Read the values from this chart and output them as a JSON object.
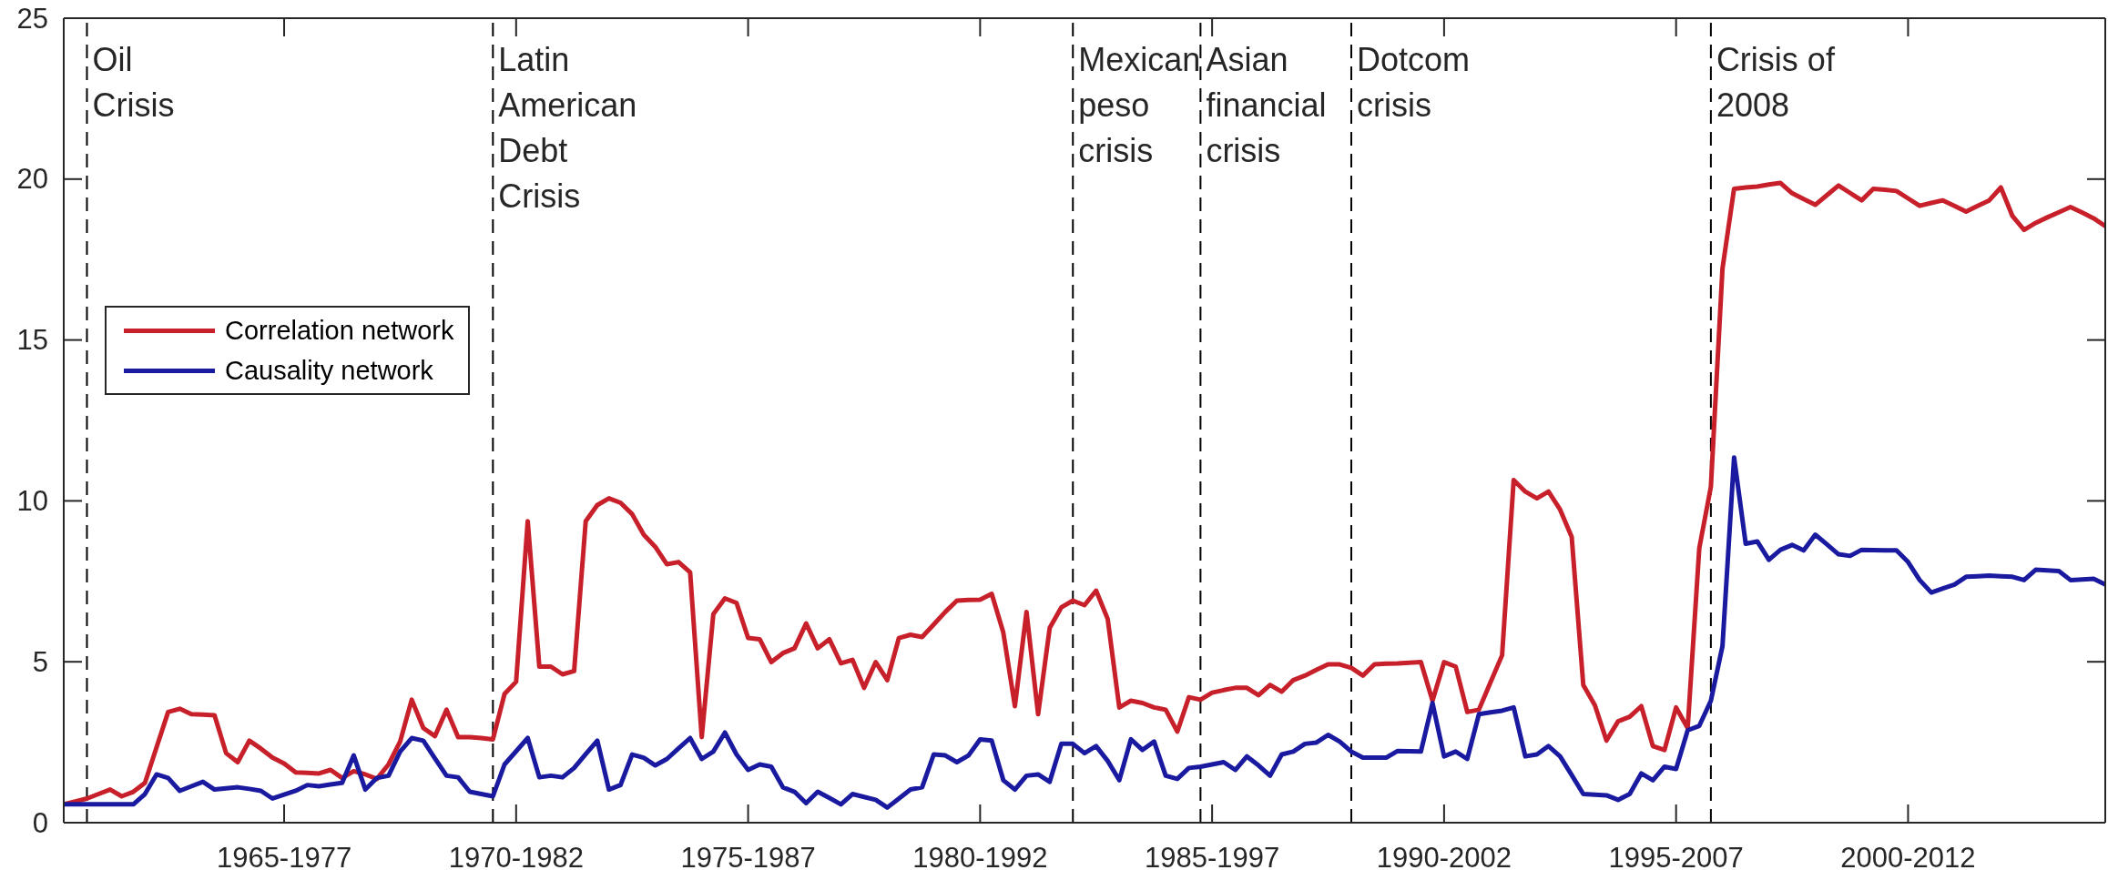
{
  "chart_data": {
    "type": "line",
    "categories": [
      null,
      null,
      null,
      null,
      null,
      null,
      null,
      null,
      null,
      null,
      null,
      null,
      null,
      null,
      null,
      null,
      null,
      null,
      null,
      "1965-1977",
      null,
      null,
      null,
      null,
      null,
      null,
      null,
      null,
      null,
      null,
      null,
      null,
      null,
      null,
      null,
      null,
      null,
      null,
      null,
      "1970-1982",
      null,
      null,
      null,
      null,
      null,
      null,
      null,
      null,
      null,
      null,
      null,
      null,
      null,
      null,
      null,
      null,
      null,
      null,
      null,
      "1975-1987",
      null,
      null,
      null,
      null,
      null,
      null,
      null,
      null,
      null,
      null,
      null,
      null,
      null,
      null,
      null,
      null,
      null,
      null,
      null,
      "1980-1992",
      null,
      null,
      null,
      null,
      null,
      null,
      null,
      null,
      null,
      null,
      null,
      null,
      null,
      null,
      null,
      null,
      null,
      null,
      null,
      "1985-1997",
      null,
      null,
      null,
      null,
      null,
      null,
      null,
      null,
      null,
      null,
      null,
      null,
      null,
      null,
      null,
      null,
      null,
      null,
      null,
      "1990-2002",
      null,
      null,
      null,
      null,
      null,
      null,
      null,
      null,
      null,
      null,
      null,
      null,
      null,
      null,
      null,
      null,
      null,
      null,
      null,
      "1995-2007",
      null,
      null,
      null,
      null,
      null,
      null,
      null,
      null,
      null,
      null,
      null,
      null,
      null,
      null,
      null,
      null,
      null,
      null,
      null,
      "2000-2012",
      null,
      null,
      null,
      null,
      null,
      null,
      null,
      null,
      null,
      null,
      null,
      null,
      null,
      null,
      null,
      null,
      null
    ],
    "ylim": [
      0,
      25
    ],
    "yticks": [
      0,
      5,
      10,
      15,
      20,
      25
    ],
    "legend": "left",
    "series": [
      {
        "name": "Correlation network",
        "color": "#c8202a",
        "values": [
          0.57,
          0.66,
          0.75,
          0.89,
          1.03,
          0.82,
          0.96,
          1.24,
          2.34,
          3.44,
          3.54,
          3.37,
          3.36,
          3.34,
          2.16,
          1.88,
          2.55,
          2.3,
          2.02,
          1.84,
          1.56,
          1.55,
          1.53,
          1.64,
          1.39,
          1.6,
          1.5,
          1.36,
          1.81,
          2.52,
          3.82,
          2.94,
          2.69,
          3.51,
          2.66,
          2.66,
          2.63,
          2.59,
          4,
          4.38,
          9.37,
          4.85,
          4.85,
          4.61,
          4.71,
          9.37,
          9.87,
          10.08,
          9.94,
          9.59,
          8.95,
          8.57,
          8.03,
          8.1,
          7.78,
          2.66,
          6.48,
          6.97,
          6.83,
          5.74,
          5.7,
          4.99,
          5.27,
          5.42,
          6.19,
          5.42,
          5.7,
          4.95,
          5.06,
          4.19,
          4.99,
          4.43,
          5.74,
          5.84,
          5.77,
          6.16,
          6.55,
          6.9,
          6.92,
          6.93,
          7.11,
          5.91,
          3.62,
          6.55,
          3.37,
          6.05,
          6.69,
          6.9,
          6.76,
          7.21,
          6.33,
          3.58,
          3.79,
          3.72,
          3.58,
          3.51,
          2.83,
          3.9,
          3.82,
          4.04,
          4.12,
          4.19,
          4.19,
          3.96,
          4.28,
          4.07,
          4.43,
          4.57,
          4.75,
          4.92,
          4.92,
          4.81,
          4.57,
          4.92,
          4.94,
          4.95,
          4.97,
          4.99,
          3.79,
          4.99,
          4.85,
          3.44,
          3.51,
          4.36,
          5.2,
          10.65,
          10.29,
          10.08,
          10.29,
          9.73,
          8.88,
          4.28,
          3.65,
          2.55,
          3.15,
          3.29,
          3.62,
          2.38,
          2.26,
          3.58,
          2.94,
          8.53,
          10.44,
          17.22,
          19.7,
          19.74,
          19.77,
          19.83,
          19.88,
          19.56,
          19.38,
          19.2,
          19.5,
          19.8,
          19.57,
          19.34,
          19.7,
          19.67,
          19.63,
          19.4,
          19.17,
          19.26,
          19.34,
          19.17,
          18.99,
          19.17,
          19.34,
          19.74,
          18.85,
          18.42,
          18.64,
          18.81,
          18.97,
          19.13,
          18.96,
          18.78,
          18.54
        ]
      },
      {
        "name": "Causality network",
        "color": "#1a1aa0",
        "values": [
          0.57,
          0.57,
          0.57,
          0.57,
          0.57,
          0.57,
          0.57,
          0.89,
          1.5,
          1.39,
          0.99,
          1.13,
          1.27,
          1.03,
          1.07,
          1.1,
          1.05,
          0.99,
          0.75,
          0.87,
          0.99,
          1.17,
          1.13,
          1.19,
          1.24,
          2.09,
          1.03,
          1.39,
          1.46,
          2.21,
          2.63,
          2.55,
          2,
          1.46,
          1.41,
          0.96,
          0.89,
          0.82,
          1.81,
          2.22,
          2.63,
          1.41,
          1.46,
          1.41,
          1.7,
          2.13,
          2.55,
          1.03,
          1.17,
          2.12,
          2.02,
          1.78,
          1.98,
          2.31,
          2.63,
          1.98,
          2.21,
          2.8,
          2.12,
          1.64,
          1.81,
          1.74,
          1.1,
          0.96,
          0.61,
          0.96,
          0.77,
          0.57,
          0.89,
          0.8,
          0.71,
          0.47,
          0.75,
          1.03,
          1.1,
          2.12,
          2.09,
          1.88,
          2.09,
          2.59,
          2.55,
          1.32,
          1.03,
          1.46,
          1.5,
          1.27,
          2.45,
          2.45,
          2.16,
          2.38,
          1.92,
          1.32,
          2.59,
          2.26,
          2.52,
          1.46,
          1.36,
          1.7,
          1.74,
          1.81,
          1.88,
          1.64,
          2.06,
          1.78,
          1.46,
          2.12,
          2.21,
          2.45,
          2.49,
          2.73,
          2.52,
          2.21,
          2.02,
          2.02,
          2.02,
          2.23,
          2.22,
          2.21,
          3.72,
          2.06,
          2.21,
          1.98,
          3.37,
          3.43,
          3.48,
          3.58,
          2.06,
          2.12,
          2.38,
          2.06,
          1.48,
          0.89,
          0.87,
          0.85,
          0.71,
          0.89,
          1.53,
          1.32,
          1.74,
          1.67,
          2.87,
          3.01,
          3.79,
          5.49,
          11.35,
          8.67,
          8.74,
          8.17,
          8.48,
          8.63,
          8.46,
          8.95,
          8.65,
          8.34,
          8.29,
          8.48,
          8.47,
          8.46,
          8.46,
          8.1,
          7.54,
          7.15,
          7.28,
          7.4,
          7.64,
          7.66,
          7.68,
          7.66,
          7.64,
          7.54,
          7.86,
          7.84,
          7.82,
          7.54,
          7.56,
          7.58,
          7.4
        ]
      }
    ],
    "annotations": [
      "Oil\nCrisis",
      "Latin\nAmerican\nDebt\nCrisis",
      "Mexican\npeso\ncrisis",
      "Asian\nfinancial\ncrisis",
      "Dotcom\ncrisis",
      "Crisis of\n2008"
    ]
  }
}
